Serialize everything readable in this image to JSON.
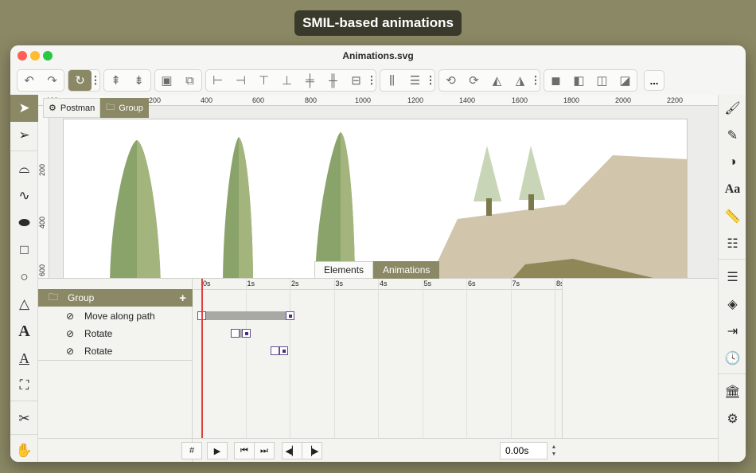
{
  "banner": "SMIL-based animations",
  "window": {
    "title": "Animations.svg"
  },
  "toolbar": {
    "groups": [
      [
        "undo-icon",
        "redo-icon"
      ],
      [
        "snap-icon"
      ],
      [
        "raise-icon",
        "lower-icon"
      ],
      [
        "group-icon",
        "ungroup-icon"
      ],
      [
        "align-left-icon",
        "align-right-icon",
        "align-top-icon",
        "align-bottom-icon",
        "align-center-h-icon",
        "align-center-v-icon",
        "align-middle-icon"
      ],
      [
        "distribute-h-icon",
        "distribute-v-icon"
      ],
      [
        "rotate-ccw-icon",
        "rotate-cw-icon",
        "flip-h-icon",
        "flip-v-icon"
      ],
      [
        "union-icon",
        "subtract-icon",
        "intersect-icon",
        "exclude-icon"
      ]
    ],
    "more_label": "..."
  },
  "ruler": {
    "h_ticks": [
      "100",
      "200",
      "400",
      "600",
      "800",
      "1000",
      "1200",
      "1400",
      "1600",
      "1800",
      "2000",
      "2200"
    ],
    "v_ticks": [
      "200",
      "400",
      "600"
    ]
  },
  "breadcrumb": {
    "items": [
      "Postman",
      "Group"
    ]
  },
  "panel_tabs": {
    "elements": "Elements",
    "animations": "Animations"
  },
  "layers": {
    "group": "Group",
    "add": "+",
    "items": [
      "Move along path",
      "Rotate",
      "Rotate"
    ]
  },
  "timeline": {
    "seconds": [
      "0s",
      "1s",
      "2s",
      "3s",
      "4s",
      "5s",
      "6s",
      "7s",
      "8s"
    ],
    "playhead_time": 0,
    "tracks": [
      {
        "name": "Move along path",
        "start_s": 0,
        "end_s": 2
      },
      {
        "name": "Rotate",
        "start_s": 0.75,
        "end_s": 1.0
      },
      {
        "name": "Rotate",
        "start_s": 1.65,
        "end_s": 1.85
      }
    ]
  },
  "controls": {
    "hash": "#",
    "play": "▶",
    "first": "⏮",
    "last": "⏭",
    "prev": "◀▏",
    "next": "▕▶",
    "time_value": "0.00s"
  },
  "colors": {
    "accent": "#8b8865",
    "playhead": "#e04040",
    "keyframe": "#4b2d78"
  }
}
